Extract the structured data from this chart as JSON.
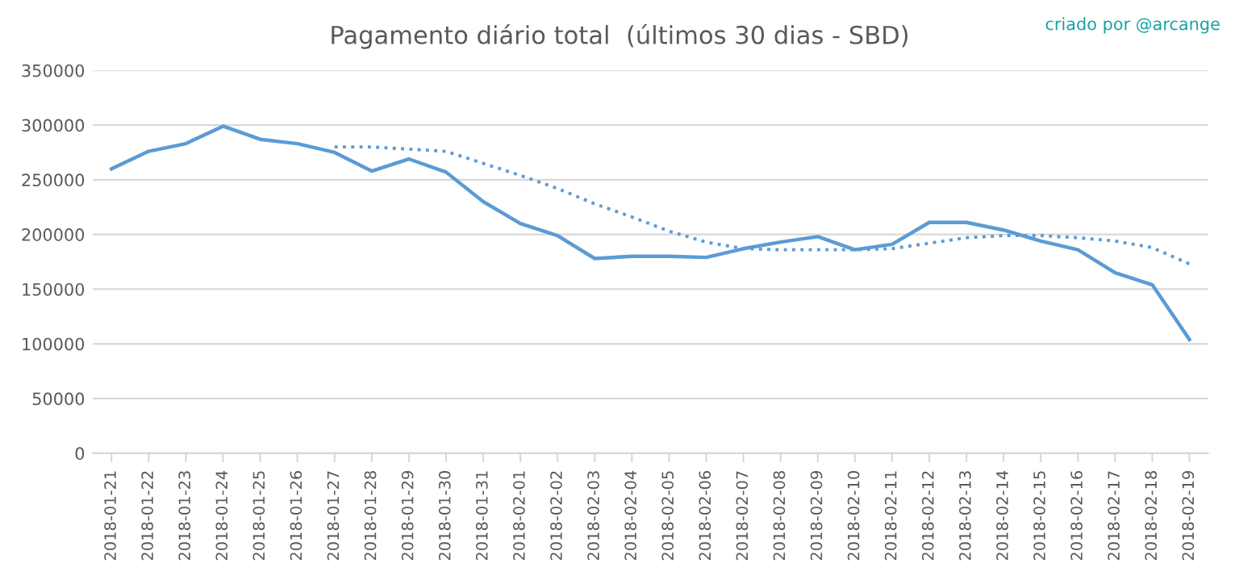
{
  "chart_data": {
    "type": "line",
    "title": "Pagamento diário total  (últimos 30 dias - SBD)",
    "categories": [
      "2018-01-21",
      "2018-01-22",
      "2018-01-23",
      "2018-01-24",
      "2018-01-25",
      "2018-01-26",
      "2018-01-27",
      "2018-01-28",
      "2018-01-29",
      "2018-01-30",
      "2018-01-31",
      "2018-02-01",
      "2018-02-02",
      "2018-02-03",
      "2018-02-04",
      "2018-02-05",
      "2018-02-06",
      "2018-02-07",
      "2018-02-08",
      "2018-02-09",
      "2018-02-10",
      "2018-02-11",
      "2018-02-12",
      "2018-02-13",
      "2018-02-14",
      "2018-02-15",
      "2018-02-16",
      "2018-02-17",
      "2018-02-18",
      "2018-02-19"
    ],
    "series": [
      {
        "color": "#5b9bd5",
        "line_style": "solid",
        "values": [
          260000,
          276000,
          283000,
          299000,
          287000,
          283000,
          275000,
          258000,
          269000,
          257000,
          230000,
          210000,
          199000,
          178000,
          180000,
          180000,
          179000,
          187000,
          193000,
          198000,
          186000,
          191000,
          211000,
          211000,
          204000,
          194000,
          186000,
          165000,
          154000,
          104000
        ]
      },
      {
        "color": "#5b9bd5",
        "line_style": "dotted",
        "values": [
          null,
          null,
          null,
          null,
          null,
          null,
          280000,
          280000,
          278000,
          276000,
          265000,
          254000,
          242000,
          228000,
          216000,
          203000,
          193000,
          187000,
          186000,
          186000,
          186000,
          187000,
          192000,
          197000,
          199000,
          199000,
          197000,
          194000,
          188000,
          173000
        ]
      }
    ],
    "ylim": [
      0,
      350000
    ],
    "yticks": [
      0,
      50000,
      100000,
      150000,
      200000,
      250000,
      300000,
      350000
    ],
    "grid": "y",
    "legend": false,
    "marker": "none",
    "annotations": [
      "criado por @arcange"
    ]
  }
}
